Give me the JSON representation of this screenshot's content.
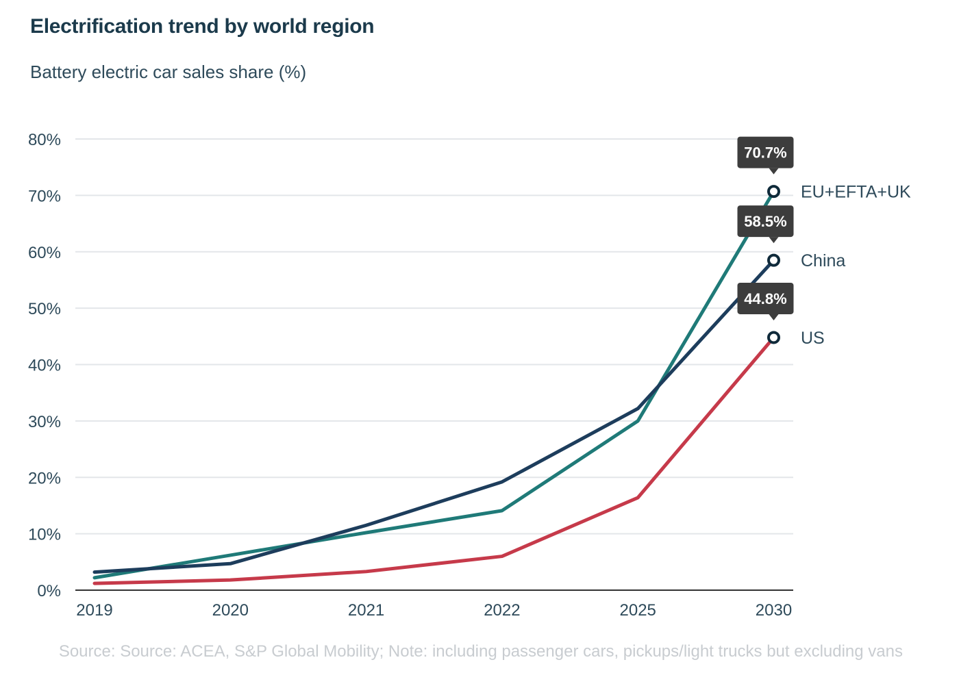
{
  "title": "Electrification trend by world region",
  "subtitle": "Battery electric car sales share (%)",
  "source": "Source:  Source: ACEA, S&P Global Mobility; Note: including passenger cars, pickups/light trucks but excluding vans",
  "chart_data": {
    "type": "line",
    "title": "Electrification trend by world region",
    "subtitle": "Battery electric car sales share (%)",
    "x": [
      "2019",
      "2020",
      "2021",
      "2022",
      "2025",
      "2030"
    ],
    "ylim": [
      0,
      80
    ],
    "yticks": [
      "0%",
      "10%",
      "20%",
      "30%",
      "40%",
      "50%",
      "60%",
      "70%",
      "80%"
    ],
    "grid": true,
    "series": [
      {
        "name": "US",
        "color": "#c63a4a",
        "values": [
          1.2,
          1.8,
          3.3,
          6.0,
          16.4,
          44.8
        ],
        "end_label": "44.8%"
      },
      {
        "name": "EU+EFTA+UK",
        "color": "#1f7a78",
        "values": [
          2.2,
          6.2,
          10.2,
          14.1,
          30.0,
          70.7
        ],
        "end_label": "70.7%"
      },
      {
        "name": "China",
        "color": "#1d3d5c",
        "values": [
          3.2,
          4.7,
          11.5,
          19.2,
          32.2,
          58.5
        ],
        "end_label": "58.5%"
      }
    ],
    "series_order_top_to_bottom": [
      "EU+EFTA+UK",
      "China",
      "US"
    ]
  }
}
